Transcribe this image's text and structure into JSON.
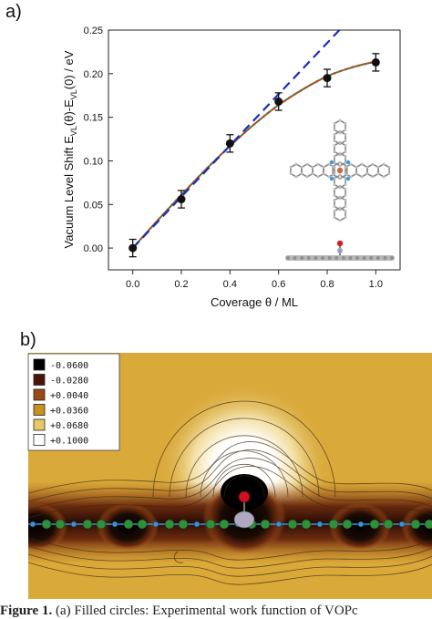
{
  "figure": {
    "label_a": "a)",
    "label_b": "b)",
    "caption_lead": "Figure 1.",
    "caption_text": "(a) Filled circles: Experimental work function of VOPc"
  },
  "chart_data": {
    "type": "scatter",
    "title": "",
    "xlabel": "Coverage θ / ML",
    "ylabel": "Vacuum Level Shift E_VL(θ)-E_VL(0) / eV",
    "ylabel_main": "Vacuum Level Shift E",
    "ylabel_sub1": "VL",
    "ylabel_mid": "(θ)-E",
    "ylabel_sub2": "VL",
    "ylabel_end": "(0) / eV",
    "xlim": [
      -0.1,
      1.1
    ],
    "ylim": [
      -0.025,
      0.25
    ],
    "xticks": [
      "0.0",
      "0.2",
      "0.4",
      "0.6",
      "0.8",
      "1.0"
    ],
    "yticks": [
      "0.00",
      "0.05",
      "0.10",
      "0.15",
      "0.20",
      "0.25"
    ],
    "series": [
      {
        "style": "points-with-errorbars",
        "color": "#111111",
        "x": [
          0.0,
          0.2,
          0.4,
          0.6,
          0.8,
          1.0
        ],
        "y": [
          0.0,
          0.056,
          0.12,
          0.168,
          0.195,
          0.213
        ],
        "yerr": [
          0.01,
          0.01,
          0.01,
          0.01,
          0.01,
          0.01
        ]
      },
      {
        "style": "solid-line",
        "color": "#2e8b2e",
        "x": [
          0.0,
          0.1,
          0.2,
          0.3,
          0.4,
          0.5,
          0.6,
          0.7,
          0.8,
          0.9,
          1.0
        ],
        "y": [
          0.0,
          0.031,
          0.061,
          0.09,
          0.117,
          0.142,
          0.164,
          0.182,
          0.197,
          0.207,
          0.214
        ]
      },
      {
        "style": "dotted-line",
        "color": "#d43a2a",
        "x": [
          0.0,
          0.1,
          0.2,
          0.3,
          0.4,
          0.5,
          0.6,
          0.7,
          0.8,
          0.9,
          1.0
        ],
        "y": [
          0.0,
          0.031,
          0.061,
          0.09,
          0.117,
          0.142,
          0.164,
          0.182,
          0.197,
          0.207,
          0.214
        ]
      },
      {
        "style": "dashed-line",
        "color": "#1a2fb8",
        "x": [
          0.0,
          0.85
        ],
        "y": [
          0.0,
          0.25
        ]
      }
    ]
  },
  "map_legend": {
    "entries": [
      {
        "label": "-0.0600",
        "color": "#000000"
      },
      {
        "label": "-0.0280",
        "color": "#4a1408"
      },
      {
        "label": "+0.0040",
        "color": "#9a4a16"
      },
      {
        "label": "+0.0360",
        "color": "#c7911e"
      },
      {
        "label": "+0.0680",
        "color": "#e8c96a"
      },
      {
        "label": "+0.1000",
        "color": "#ffffff"
      }
    ]
  },
  "colors": {
    "map_background": "#d9a93a",
    "molecule_carbon": "#2f8f3a",
    "molecule_nitrogen": "#3a8fe0",
    "vanadium": "#b0a8c0",
    "oxygen": "#d01020"
  }
}
